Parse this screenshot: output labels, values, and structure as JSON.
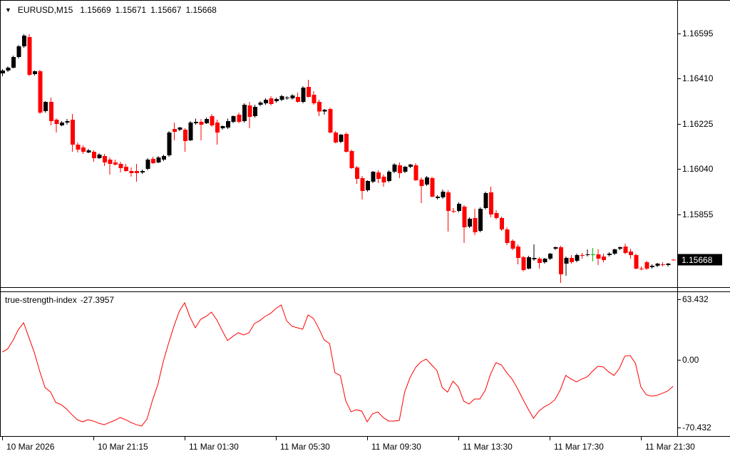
{
  "header": {
    "dropdown_icon": "▼",
    "symbol_period": "EURUSD,M15",
    "open": "1.15669",
    "high": "1.15671",
    "low": "1.15667",
    "close": "1.15668"
  },
  "indicator_header": {
    "name": "true-strength-index",
    "value": "-27.3957"
  },
  "colors": {
    "background": "#ffffff",
    "bear_candle": "#ff0000",
    "bull_candle": "#000000",
    "doji_candle": "#00b200",
    "indicator_line": "#ff0000",
    "axis_text": "#000000",
    "border": "#000000",
    "price_box_bg": "#000000",
    "price_box_text": "#ffffff"
  },
  "chart_data": [
    {
      "type": "candlestick",
      "title": "EURUSD,M15",
      "y_axis": {
        "tick_labels": [
          "1.16595",
          "1.16410",
          "1.16225",
          "1.16040",
          "1.15855"
        ],
        "tick_values": [
          1.16595,
          1.1641,
          1.16225,
          1.1604,
          1.15855
        ],
        "current_price": 1.15668,
        "current_price_label": "1.15668"
      },
      "x_axis": {
        "tick_labels": [
          "10 Mar 2026",
          "10 Mar 21:15",
          "11 Mar 01:30",
          "11 Mar 05:30",
          "11 Mar 09:30",
          "11 Mar 13:30",
          "11 Mar 17:30",
          "11 Mar 21:30"
        ]
      },
      "ohlc": [
        [
          1.16432,
          1.16449,
          1.1642,
          1.16443
        ],
        [
          1.16443,
          1.16461,
          1.16437,
          1.16455
        ],
        [
          1.16455,
          1.16505,
          1.16452,
          1.16499
        ],
        [
          1.16499,
          1.16548,
          1.16493,
          1.16542
        ],
        [
          1.16542,
          1.16592,
          1.16536,
          1.16586
        ],
        [
          1.1658,
          1.16592,
          1.1642,
          1.16426
        ],
        [
          1.16429,
          1.16443,
          1.16423,
          1.1644
        ],
        [
          1.1644,
          1.16446,
          1.16265,
          1.16271
        ],
        [
          1.16277,
          1.16318,
          1.16271,
          1.16315
        ],
        [
          1.16315,
          1.16332,
          1.16219,
          1.16236
        ],
        [
          1.16242,
          1.16248,
          1.16189,
          1.16224
        ],
        [
          1.16219,
          1.16236,
          1.16216,
          1.1623
        ],
        [
          1.1623,
          1.16245,
          1.16222,
          1.16236
        ],
        [
          1.16242,
          1.16265,
          1.16111,
          1.1614
        ],
        [
          1.1614,
          1.16149,
          1.16108,
          1.16119
        ],
        [
          1.16128,
          1.16137,
          1.16102,
          1.16111
        ],
        [
          1.16108,
          1.16122,
          1.16105,
          1.16116
        ],
        [
          1.16111,
          1.16116,
          1.1607,
          1.16084
        ],
        [
          1.16084,
          1.16105,
          1.16081,
          1.16099
        ],
        [
          1.16093,
          1.16102,
          1.16052,
          1.16067
        ],
        [
          1.16079,
          1.16087,
          1.16017,
          1.16061
        ],
        [
          1.16067,
          1.16079,
          1.16055,
          1.16058
        ],
        [
          1.16061,
          1.1607,
          1.16026,
          1.16044
        ],
        [
          1.16049,
          1.16061,
          1.16029,
          1.16032
        ],
        [
          1.16032,
          1.16046,
          1.16009,
          1.16023
        ],
        [
          1.16032,
          1.16061,
          1.15988,
          1.16023
        ],
        [
          1.16026,
          1.16038,
          1.1602,
          1.16032
        ],
        [
          1.16041,
          1.16084,
          1.16035,
          1.16079
        ],
        [
          1.16081,
          1.1609,
          1.16061,
          1.16064
        ],
        [
          1.16067,
          1.16093,
          1.16064,
          1.16087
        ],
        [
          1.16079,
          1.16099,
          1.16073,
          1.16093
        ],
        [
          1.16096,
          1.16195,
          1.1609,
          1.16189
        ],
        [
          1.16204,
          1.1623,
          1.16157,
          1.16192
        ],
        [
          1.16201,
          1.16213,
          1.16195,
          1.1621
        ],
        [
          1.16201,
          1.16207,
          1.16111,
          1.16154
        ],
        [
          1.16157,
          1.16236,
          1.16154,
          1.1623
        ],
        [
          1.16227,
          1.16247,
          1.16222,
          1.16233
        ],
        [
          1.16233,
          1.16245,
          1.16157,
          1.16222
        ],
        [
          1.16227,
          1.16251,
          1.16224,
          1.16245
        ],
        [
          1.16257,
          1.16265,
          1.16213,
          1.16219
        ],
        [
          1.1623,
          1.16242,
          1.1614,
          1.16189
        ],
        [
          1.16207,
          1.16219,
          1.16201,
          1.16216
        ],
        [
          1.1621,
          1.16247,
          1.16204,
          1.16236
        ],
        [
          1.16233,
          1.16259,
          1.16227,
          1.16257
        ],
        [
          1.16262,
          1.16271,
          1.16227,
          1.16233
        ],
        [
          1.16236,
          1.16309,
          1.1623,
          1.16303
        ],
        [
          1.163,
          1.16315,
          1.16207,
          1.16254
        ],
        [
          1.16257,
          1.16303,
          1.16251,
          1.16294
        ],
        [
          1.16303,
          1.16318,
          1.16297,
          1.16312
        ],
        [
          1.16309,
          1.16329,
          1.16303,
          1.16324
        ],
        [
          1.16329,
          1.16338,
          1.163,
          1.16306
        ],
        [
          1.16318,
          1.16332,
          1.16312,
          1.16326
        ],
        [
          1.16324,
          1.16344,
          1.16318,
          1.16338
        ],
        [
          1.16329,
          1.16338,
          1.16324,
          1.16332
        ],
        [
          1.16329,
          1.16347,
          1.16324,
          1.16341
        ],
        [
          1.16335,
          1.16353,
          1.16312,
          1.16315
        ],
        [
          1.16315,
          1.16379,
          1.16309,
          1.16373
        ],
        [
          1.16376,
          1.16405,
          1.16332,
          1.16335
        ],
        [
          1.16344,
          1.16359,
          1.16303,
          1.16309
        ],
        [
          1.16315,
          1.16324,
          1.16257,
          1.16276
        ],
        [
          1.16276,
          1.16286,
          1.16262,
          1.16283
        ],
        [
          1.16286,
          1.16292,
          1.16186,
          1.16189
        ],
        [
          1.16189,
          1.16195,
          1.16146,
          1.16149
        ],
        [
          1.16152,
          1.16184,
          1.16146,
          1.1618
        ],
        [
          1.16184,
          1.16189,
          1.16108,
          1.16111
        ],
        [
          1.16113,
          1.16119,
          1.16041,
          1.16044
        ],
        [
          1.16046,
          1.16052,
          1.15979,
          1.16
        ],
        [
          1.16003,
          1.16011,
          1.15915,
          1.1595
        ],
        [
          1.15953,
          1.15994,
          1.15947,
          1.15991
        ],
        [
          1.15988,
          1.16032,
          1.15982,
          1.16029
        ],
        [
          1.16026,
          1.16035,
          1.15982,
          1.16
        ],
        [
          1.16009,
          1.16017,
          1.15968,
          1.15985
        ],
        [
          1.15991,
          1.16035,
          1.15985,
          1.16029
        ],
        [
          1.16029,
          1.16064,
          1.16023,
          1.16058
        ],
        [
          1.16055,
          1.16067,
          1.16003,
          1.16023
        ],
        [
          1.16029,
          1.16052,
          1.16023,
          1.16049
        ],
        [
          1.16049,
          1.16061,
          1.16044,
          1.16058
        ],
        [
          1.16055,
          1.16064,
          1.15991,
          1.15994
        ],
        [
          1.15997,
          1.16006,
          1.159,
          1.1597
        ],
        [
          1.15976,
          1.16011,
          1.1597,
          1.16006
        ],
        [
          1.16003,
          1.16009,
          1.15924,
          1.15927
        ],
        [
          1.15921,
          1.15932,
          1.15915,
          1.15927
        ],
        [
          1.15924,
          1.15956,
          1.15918,
          1.15947
        ],
        [
          1.15944,
          1.15953,
          1.15784,
          1.15868
        ],
        [
          1.15868,
          1.1588,
          1.1586,
          1.15865
        ],
        [
          1.15868,
          1.15903,
          1.15862,
          1.15897
        ],
        [
          1.15886,
          1.15892,
          1.15737,
          1.15801
        ],
        [
          1.15804,
          1.15842,
          1.15798,
          1.15836
        ],
        [
          1.15839,
          1.15877,
          1.15769,
          1.15781
        ],
        [
          1.15787,
          1.15883,
          1.15781,
          1.15877
        ],
        [
          1.1588,
          1.15947,
          1.15874,
          1.15941
        ],
        [
          1.15944,
          1.15968,
          1.15842,
          1.15854
        ],
        [
          1.1586,
          1.15871,
          1.15833,
          1.15839
        ],
        [
          1.15839,
          1.15845,
          1.15787,
          1.15793
        ],
        [
          1.15793,
          1.15801,
          1.15728,
          1.15737
        ],
        [
          1.15746,
          1.15752,
          1.15708,
          1.15714
        ],
        [
          1.15722,
          1.15731,
          1.1565,
          1.15676
        ],
        [
          1.15679,
          1.15685,
          1.1562,
          1.15626
        ],
        [
          1.15632,
          1.15685,
          1.15629,
          1.15679
        ],
        [
          1.1567,
          1.15731,
          1.15664,
          1.15676
        ],
        [
          1.15673,
          1.15679,
          1.15632,
          1.15655
        ],
        [
          1.15658,
          1.15676,
          1.15652,
          1.15673
        ],
        [
          1.15673,
          1.15696,
          1.15667,
          1.15693
        ],
        [
          1.15714,
          1.15722,
          1.15708,
          1.1572
        ],
        [
          1.1572,
          1.15725,
          1.15574,
          1.15609
        ],
        [
          1.15652,
          1.15682,
          1.15603,
          1.15676
        ],
        [
          1.15676,
          1.15688,
          1.15652,
          1.15658
        ],
        [
          1.15664,
          1.15693,
          1.15658,
          1.15688
        ],
        [
          1.15688,
          1.15696,
          1.15673,
          1.15685
        ],
        [
          1.15688,
          1.15711,
          1.15682,
          1.1569
        ],
        [
          1.1569,
          1.15717,
          1.15661,
          1.1569
        ],
        [
          1.1569,
          1.15711,
          1.15647,
          1.15673
        ],
        [
          1.15682,
          1.15693,
          1.15658,
          1.15667
        ],
        [
          1.15688,
          1.15699,
          1.15682,
          1.15693
        ],
        [
          1.15693,
          1.15714,
          1.15688,
          1.15711
        ],
        [
          1.15714,
          1.15722,
          1.15708,
          1.1572
        ],
        [
          1.15722,
          1.15734,
          1.1569,
          1.15696
        ],
        [
          1.15702,
          1.15714,
          1.15673,
          1.15688
        ],
        [
          1.15688,
          1.15693,
          1.15629,
          1.15632
        ],
        [
          1.15632,
          1.15641,
          1.15626,
          1.15629
        ],
        [
          1.15658,
          1.15664,
          1.15626,
          1.15632
        ],
        [
          1.15638,
          1.1565,
          1.15632,
          1.15644
        ],
        [
          1.15644,
          1.15655,
          1.15638,
          1.15652
        ],
        [
          1.1565,
          1.15658,
          1.15641,
          1.15647
        ],
        [
          1.15647,
          1.15655,
          1.15641,
          1.15652
        ],
        [
          1.15669,
          1.15671,
          1.15667,
          1.15668
        ]
      ]
    },
    {
      "type": "line",
      "title": "true-strength-index",
      "current_value": -27.3957,
      "y_axis": {
        "tick_labels": [
          "63.432",
          "0.00",
          "-70.432"
        ],
        "tick_values": [
          63.432,
          0.0,
          -70.432
        ]
      },
      "values": [
        8.4,
        11.4,
        20.3,
        31.5,
        38.9,
        23.3,
        7.7,
        -11.7,
        -28.8,
        -33.2,
        -44.4,
        -46.6,
        -51.1,
        -57.0,
        -62.3,
        -64.5,
        -62.3,
        -63.7,
        -66.0,
        -67.5,
        -65.2,
        -63.0,
        -60.0,
        -62.3,
        -65.2,
        -67.5,
        -68.9,
        -61.5,
        -42.2,
        -25.8,
        -2.0,
        17.3,
        35.2,
        50.8,
        59.7,
        44.8,
        33.7,
        42.6,
        45.6,
        50.0,
        41.9,
        30.7,
        20.3,
        24.8,
        28.5,
        26.2,
        28.5,
        38.1,
        41.1,
        45.6,
        48.6,
        53.8,
        57.5,
        41.1,
        35.2,
        33.7,
        32.2,
        47.1,
        43.4,
        33.0,
        21.0,
        17.3,
        -13.2,
        -16.1,
        -42.2,
        -54.1,
        -51.9,
        -53.3,
        -64.5,
        -56.3,
        -54.1,
        -60.0,
        -63.7,
        -63.7,
        -63.0,
        -33.2,
        -18.3,
        -8.0,
        -2.0,
        1.0,
        -5.0,
        -10.9,
        -28.8,
        -33.5,
        -22.1,
        -28.0,
        -42.9,
        -45.9,
        -40.7,
        -40.7,
        -31.7,
        -14.6,
        -2.8,
        -5.0,
        -13.2,
        -19.8,
        -29.5,
        -40.7,
        -51.1,
        -60.8,
        -53.3,
        -48.9,
        -45.9,
        -41.4,
        -31.0,
        -16.1,
        -19.8,
        -22.8,
        -19.8,
        -17.6,
        -11.7,
        -6.5,
        -7.2,
        -12.4,
        -16.1,
        -8.7,
        4.0,
        4.7,
        -3.5,
        -28.0,
        -36.2,
        -37.7,
        -36.9,
        -34.7,
        -32.4,
        -27.3957
      ]
    }
  ]
}
